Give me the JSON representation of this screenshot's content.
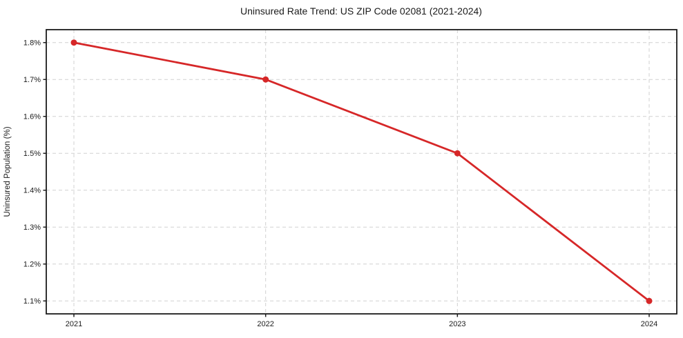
{
  "chart_data": {
    "type": "line",
    "title": "Uninsured Rate Trend: US ZIP Code 02081 (2021-2024)",
    "xlabel": "",
    "ylabel": "Uninsured Population (%)",
    "x": [
      2021,
      2022,
      2023,
      2024
    ],
    "x_tick_labels": [
      "2021",
      "2022",
      "2023",
      "2024"
    ],
    "series": [
      {
        "name": "Uninsured Rate",
        "values": [
          1.8,
          1.7,
          1.5,
          1.1
        ]
      }
    ],
    "y_ticks": [
      1.1,
      1.2,
      1.3,
      1.4,
      1.5,
      1.6,
      1.7,
      1.8
    ],
    "y_tick_labels": [
      "1.1%",
      "1.2%",
      "1.3%",
      "1.4%",
      "1.5%",
      "1.6%",
      "1.7%",
      "1.8%"
    ],
    "ylim": [
      1.065,
      1.835
    ],
    "grid": "both-dashed",
    "legend": "none",
    "colors": {
      "line": "#d62728",
      "marker": "#d62728",
      "grid": "#d0d0d0",
      "spine": "#1a1a1a",
      "text": "#1a1a1a",
      "background": "#ffffff"
    }
  }
}
